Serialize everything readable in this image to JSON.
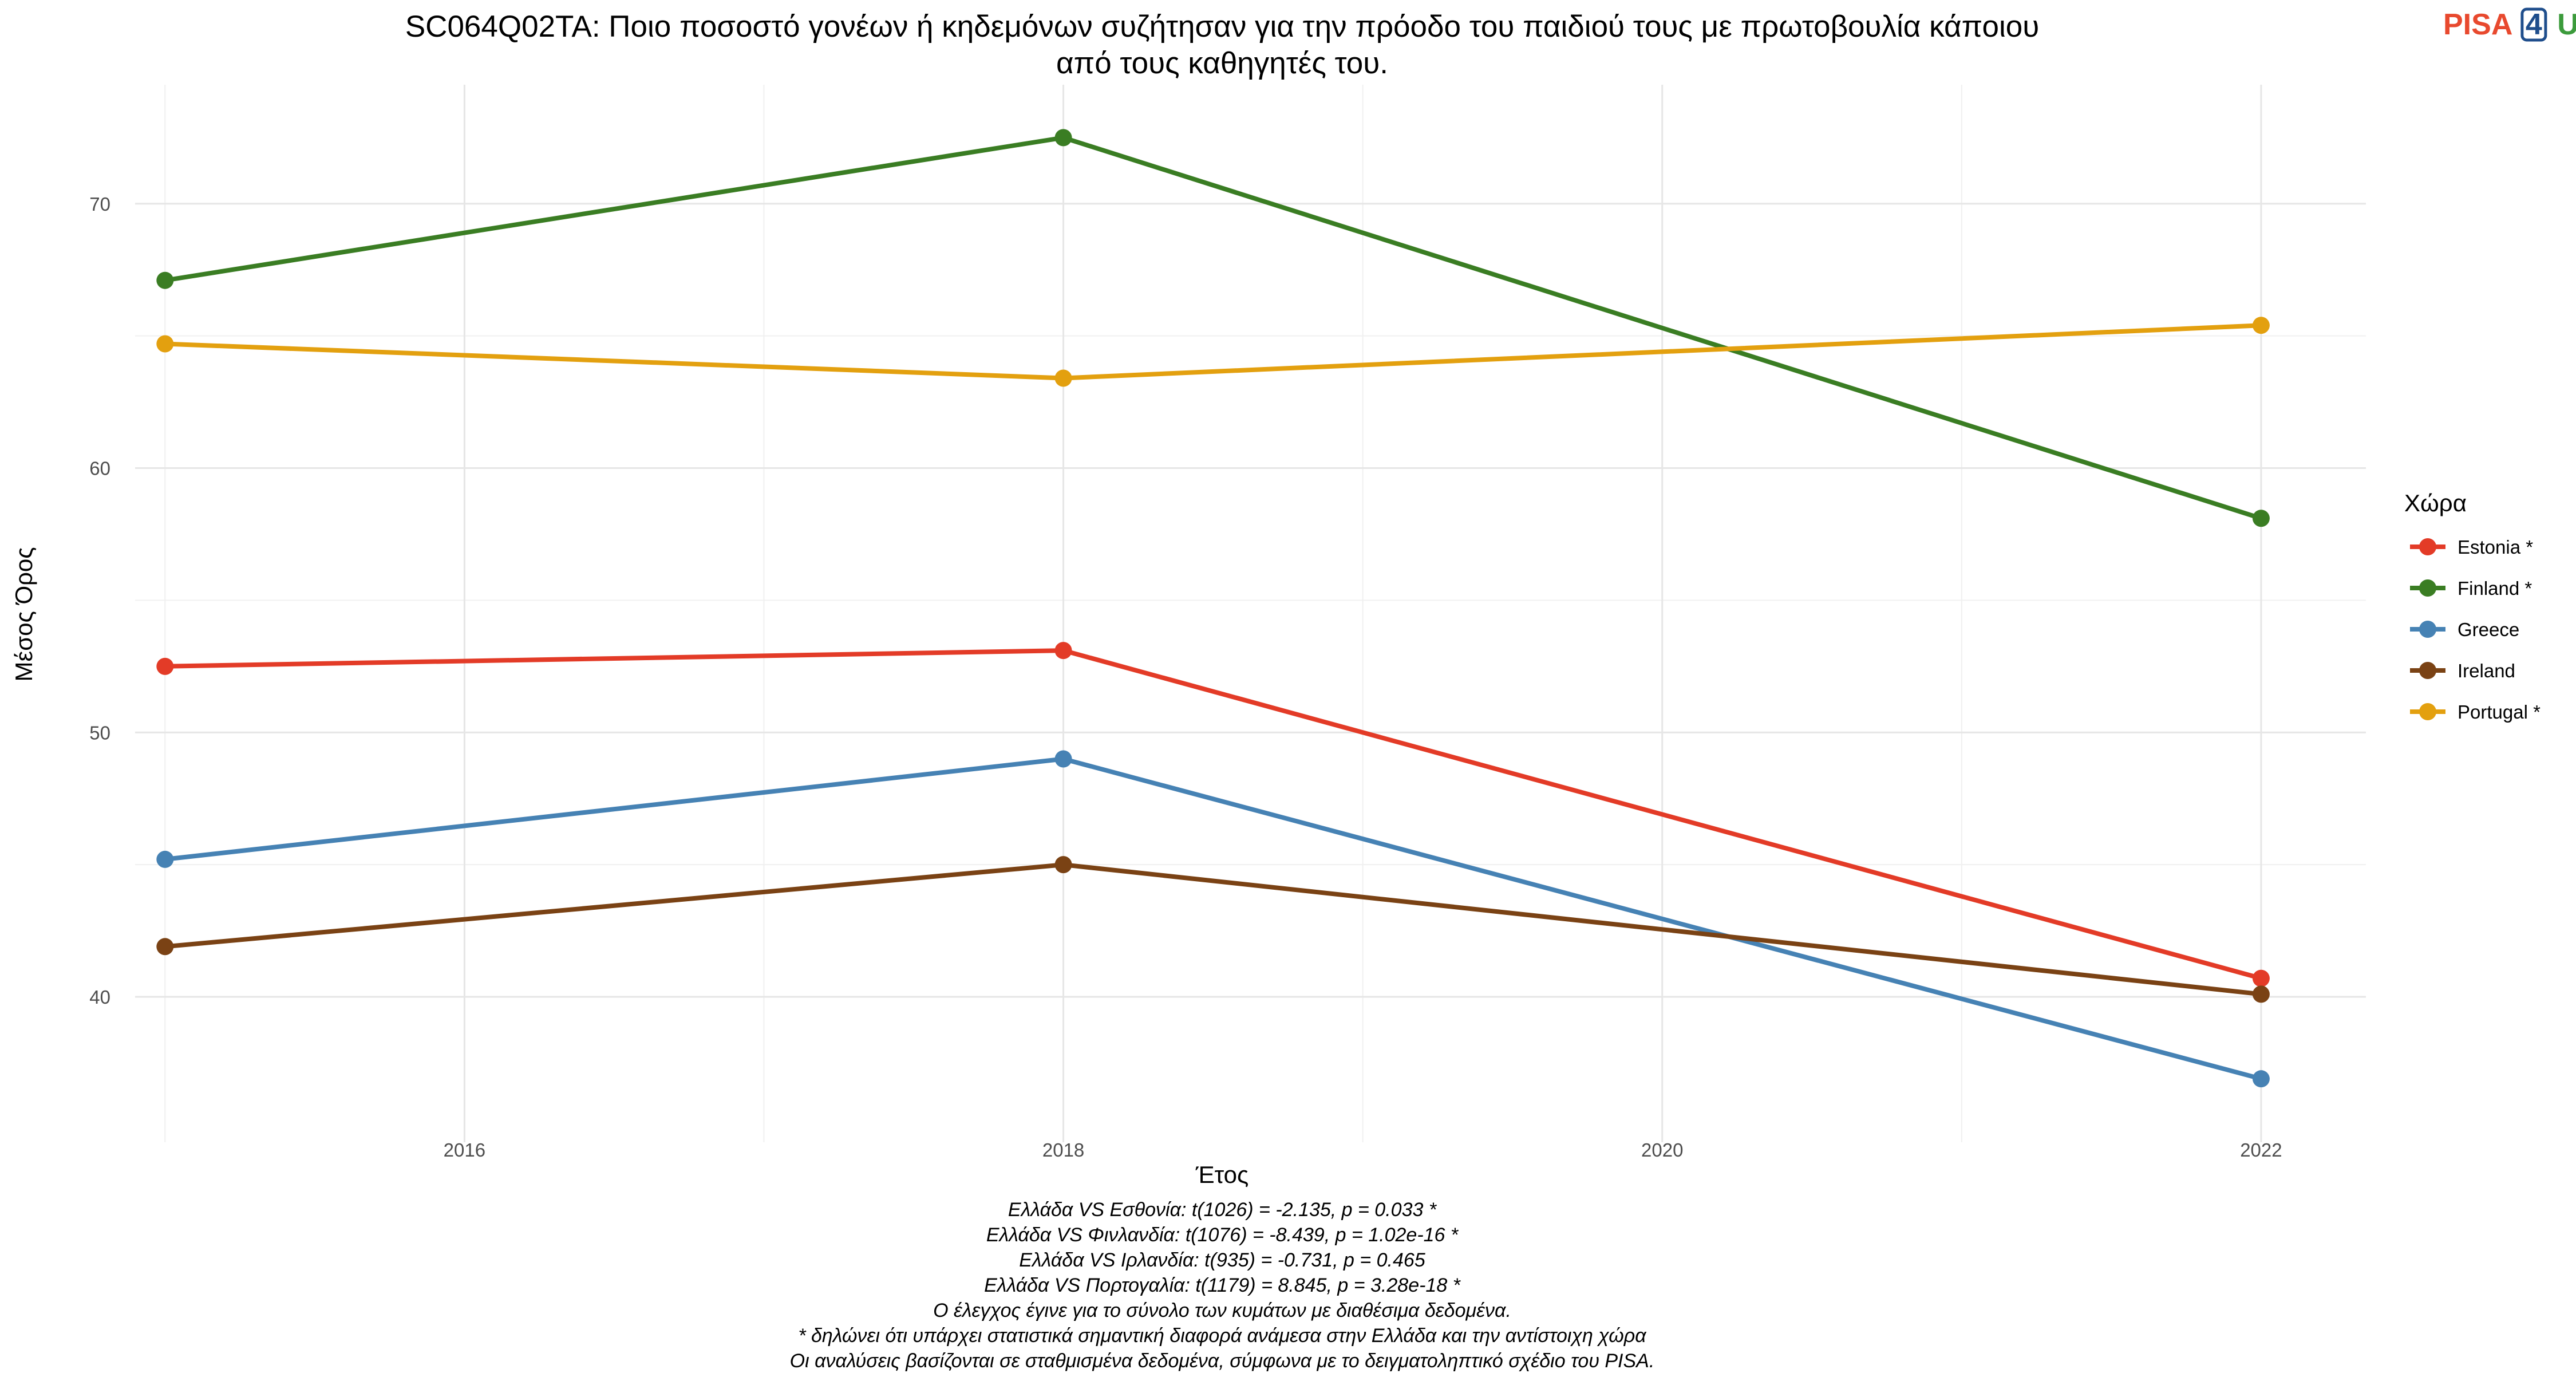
{
  "logo": {
    "part1": "PISA",
    "part2": "4",
    "part3": "U",
    "colors": {
      "part1": "#e8492e",
      "part2": "#1f4e8c",
      "part3": "#3c9b3c"
    }
  },
  "chart_data": {
    "type": "line",
    "title_lines": [
      "SC064Q02TA: Ποιο ποσοστό γονέων ή κηδεμόνων συζήτησαν για την πρόοδο του παιδιού τους με πρωτοβουλία κάποιου",
      "από τους καθηγητές του."
    ],
    "xlabel": "Έτος",
    "ylabel": "Μέσος Όρος",
    "xlim": [
      2014.9,
      2022.35
    ],
    "ylim": [
      34.5,
      74.5
    ],
    "x_ticks": [
      2016,
      2018,
      2020,
      2022
    ],
    "x_tick_labels": [
      "2016",
      "2018",
      "2020",
      "2022"
    ],
    "x_minor": [
      2015,
      2017,
      2019,
      2021
    ],
    "y_ticks": [
      40,
      50,
      60,
      70
    ],
    "y_tick_labels": [
      "40",
      "50",
      "60",
      "70"
    ],
    "y_minor": [
      45,
      55,
      65
    ],
    "grid": true,
    "legend_position": "right",
    "legend_title": "Χώρα",
    "x": [
      2015,
      2018,
      2022
    ],
    "series": [
      {
        "name": "Estonia *",
        "color": "#e33b27",
        "values": [
          52.5,
          53.1,
          40.7
        ]
      },
      {
        "name": "Finland *",
        "color": "#3a7d23",
        "values": [
          67.1,
          72.5,
          58.1
        ]
      },
      {
        "name": "Greece",
        "color": "#4682b4",
        "values": [
          45.2,
          49.0,
          36.9
        ]
      },
      {
        "name": "Ireland",
        "color": "#7a4214",
        "values": [
          41.9,
          45.0,
          40.1
        ]
      },
      {
        "name": "Portugal *",
        "color": "#e3a00f",
        "values": [
          64.7,
          63.4,
          65.4
        ]
      }
    ],
    "caption_lines": [
      "Ελλάδα VS Εσθονία: t(1026) = -2.135, p = 0.033 *",
      "Ελλάδα VS Φινλανδία: t(1076) = -8.439, p = 1.02e-16 *",
      "Ελλάδα VS Ιρλανδία: t(935) = -0.731, p = 0.465",
      "Ελλάδα VS Πορτογαλία: t(1179) = 8.845, p = 3.28e-18 *",
      "Ο έλεγχος έγινε για το σύνολο των κυμάτων με διαθέσιμα δεδομένα.",
      "* δηλώνει ότι υπάρχει στατιστικά σημαντική διαφορά ανάμεσα στην Ελλάδα και την αντίστοιχη χώρα",
      "Οι αναλύσεις βασίζονται σε σταθμισμένα δεδομένα, σύμφωνα με το δειγματοληπτικό σχέδιο του PISA."
    ]
  }
}
